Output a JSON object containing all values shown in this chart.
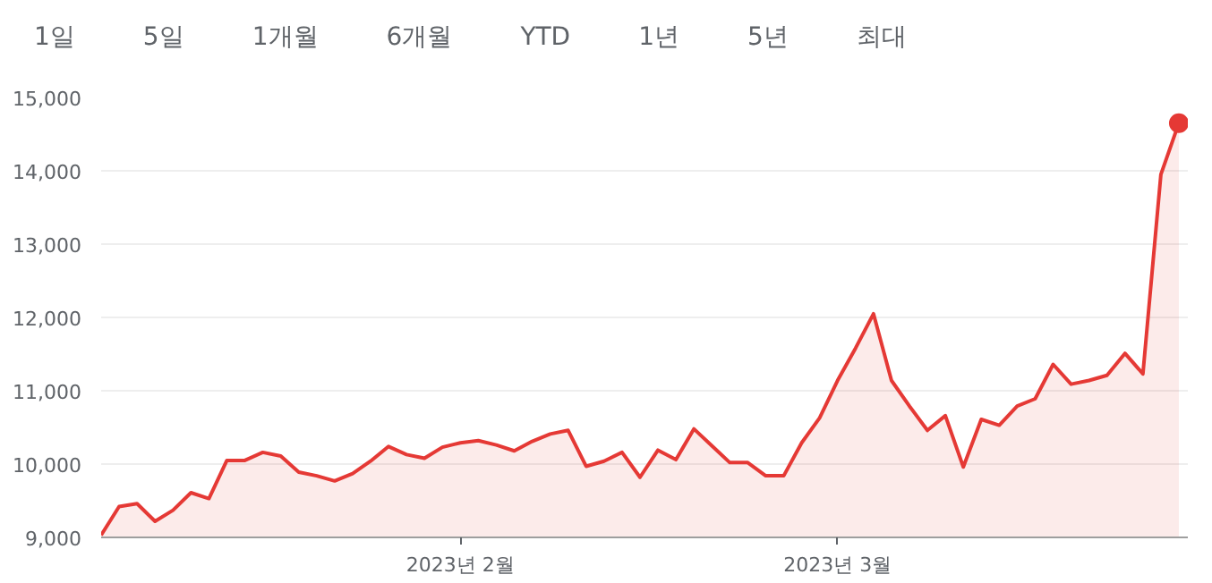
{
  "chart_data": {
    "type": "area",
    "annotations": [
      "1일",
      "5일",
      "1개월",
      "6개월",
      "YTD",
      "1년",
      "5년",
      "최대"
    ],
    "categories": [
      null,
      null,
      null,
      null,
      null,
      null,
      null,
      null,
      null,
      null,
      null,
      null,
      null,
      null,
      null,
      null,
      null,
      null,
      null,
      null,
      "2023년 2월",
      null,
      null,
      null,
      null,
      null,
      null,
      null,
      null,
      null,
      null,
      null,
      null,
      null,
      null,
      null,
      null,
      null,
      null,
      null,
      null,
      "2023년 3월",
      null,
      null,
      null,
      null,
      null,
      null,
      null,
      null,
      null,
      null,
      null,
      null,
      null,
      null,
      null,
      null,
      null,
      null,
      null
    ],
    "ylim": [
      9000,
      15000
    ],
    "yticks": [
      {
        "value": 9000,
        "label": "9,000"
      },
      {
        "value": 10000,
        "label": "10,000"
      },
      {
        "value": 11000,
        "label": "11,000"
      },
      {
        "value": 12000,
        "label": "12,000"
      },
      {
        "value": 13000,
        "label": "13,000"
      },
      {
        "value": 14000,
        "label": "14,000"
      },
      {
        "value": 15000,
        "label": "15,000"
      }
    ],
    "grid": "y",
    "series": [
      {
        "color": "#e53935",
        "values": [
          9030,
          9420,
          9460,
          9220,
          9370,
          9610,
          9530,
          10050,
          10050,
          10160,
          10110,
          9890,
          9840,
          9770,
          9870,
          10040,
          10240,
          10130,
          10080,
          10230,
          10290,
          10320,
          10260,
          10180,
          10310,
          10410,
          10460,
          9970,
          10040,
          10160,
          9820,
          10190,
          10060,
          10480,
          10250,
          10020,
          10020,
          9840,
          9840,
          10290,
          10630,
          11140,
          11580,
          12050,
          11140,
          10790,
          10460,
          10660,
          9960,
          10610,
          10530,
          10790,
          10890,
          11360,
          11090,
          11140,
          11210,
          11510,
          11230,
          13950,
          14650
        ]
      },
      {
        "type": "scatter",
        "marker": "circle",
        "color": "#e53935",
        "values": [
          null,
          null,
          null,
          null,
          null,
          null,
          null,
          null,
          null,
          null,
          null,
          null,
          null,
          null,
          null,
          null,
          null,
          null,
          null,
          null,
          null,
          null,
          null,
          null,
          null,
          null,
          null,
          null,
          null,
          null,
          null,
          null,
          null,
          null,
          null,
          null,
          null,
          null,
          null,
          null,
          null,
          null,
          null,
          null,
          null,
          null,
          null,
          null,
          null,
          null,
          null,
          null,
          null,
          null,
          null,
          null,
          null,
          null,
          null,
          null,
          14650
        ]
      }
    ]
  }
}
